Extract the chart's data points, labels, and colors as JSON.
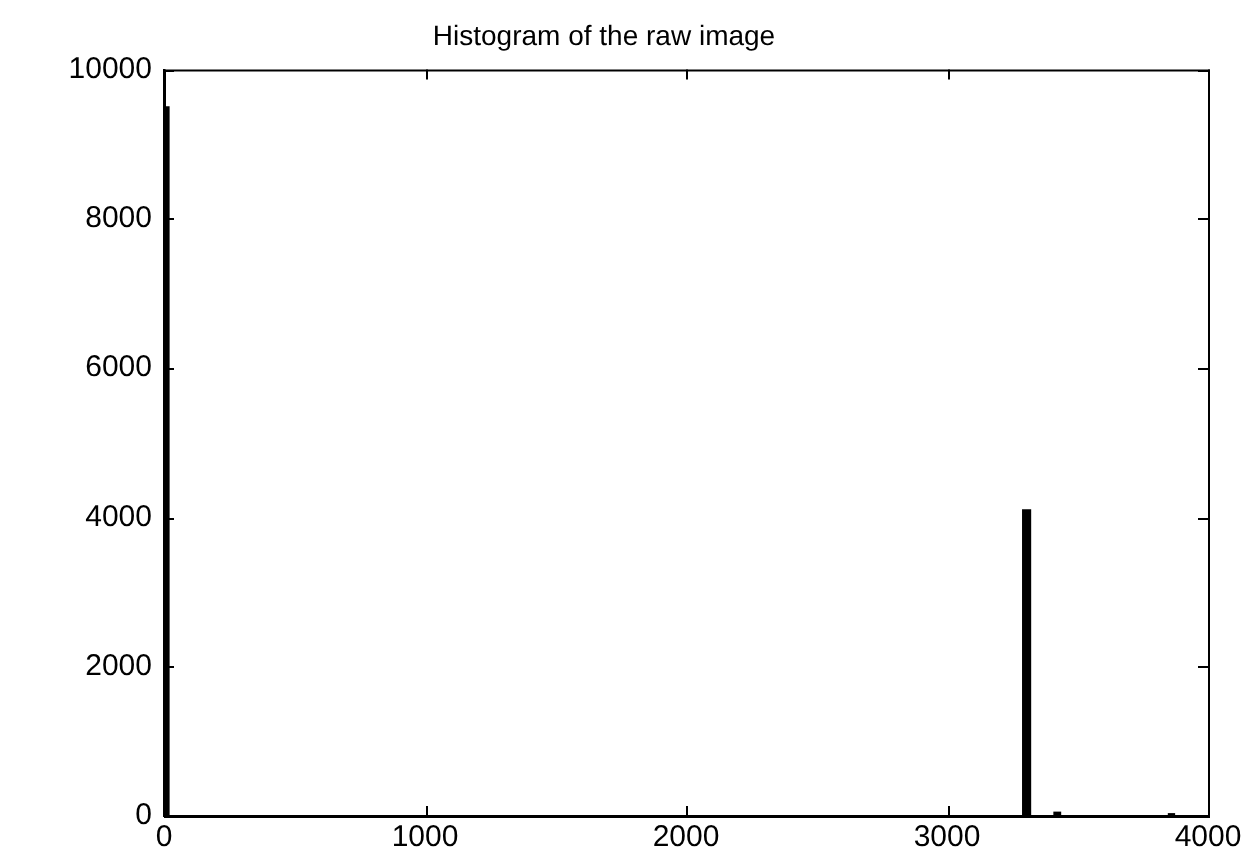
{
  "chart_data": {
    "type": "histogram",
    "title": "Histogram of the raw image",
    "bins": [
      0,
      15,
      3290,
      3320,
      3410,
      3435,
      3850,
      3870,
      4000
    ],
    "values": [
      9500,
      0,
      4100,
      0,
      50,
      0,
      30,
      0
    ],
    "color": "#000000",
    "xlim": [
      0,
      4000
    ],
    "xticks": [
      0,
      1000,
      2000,
      3000,
      4000
    ],
    "ylim": [
      0,
      10000
    ],
    "yticks": [
      0,
      2000,
      4000,
      6000,
      8000,
      10000
    ],
    "grid": false,
    "legend": false
  }
}
